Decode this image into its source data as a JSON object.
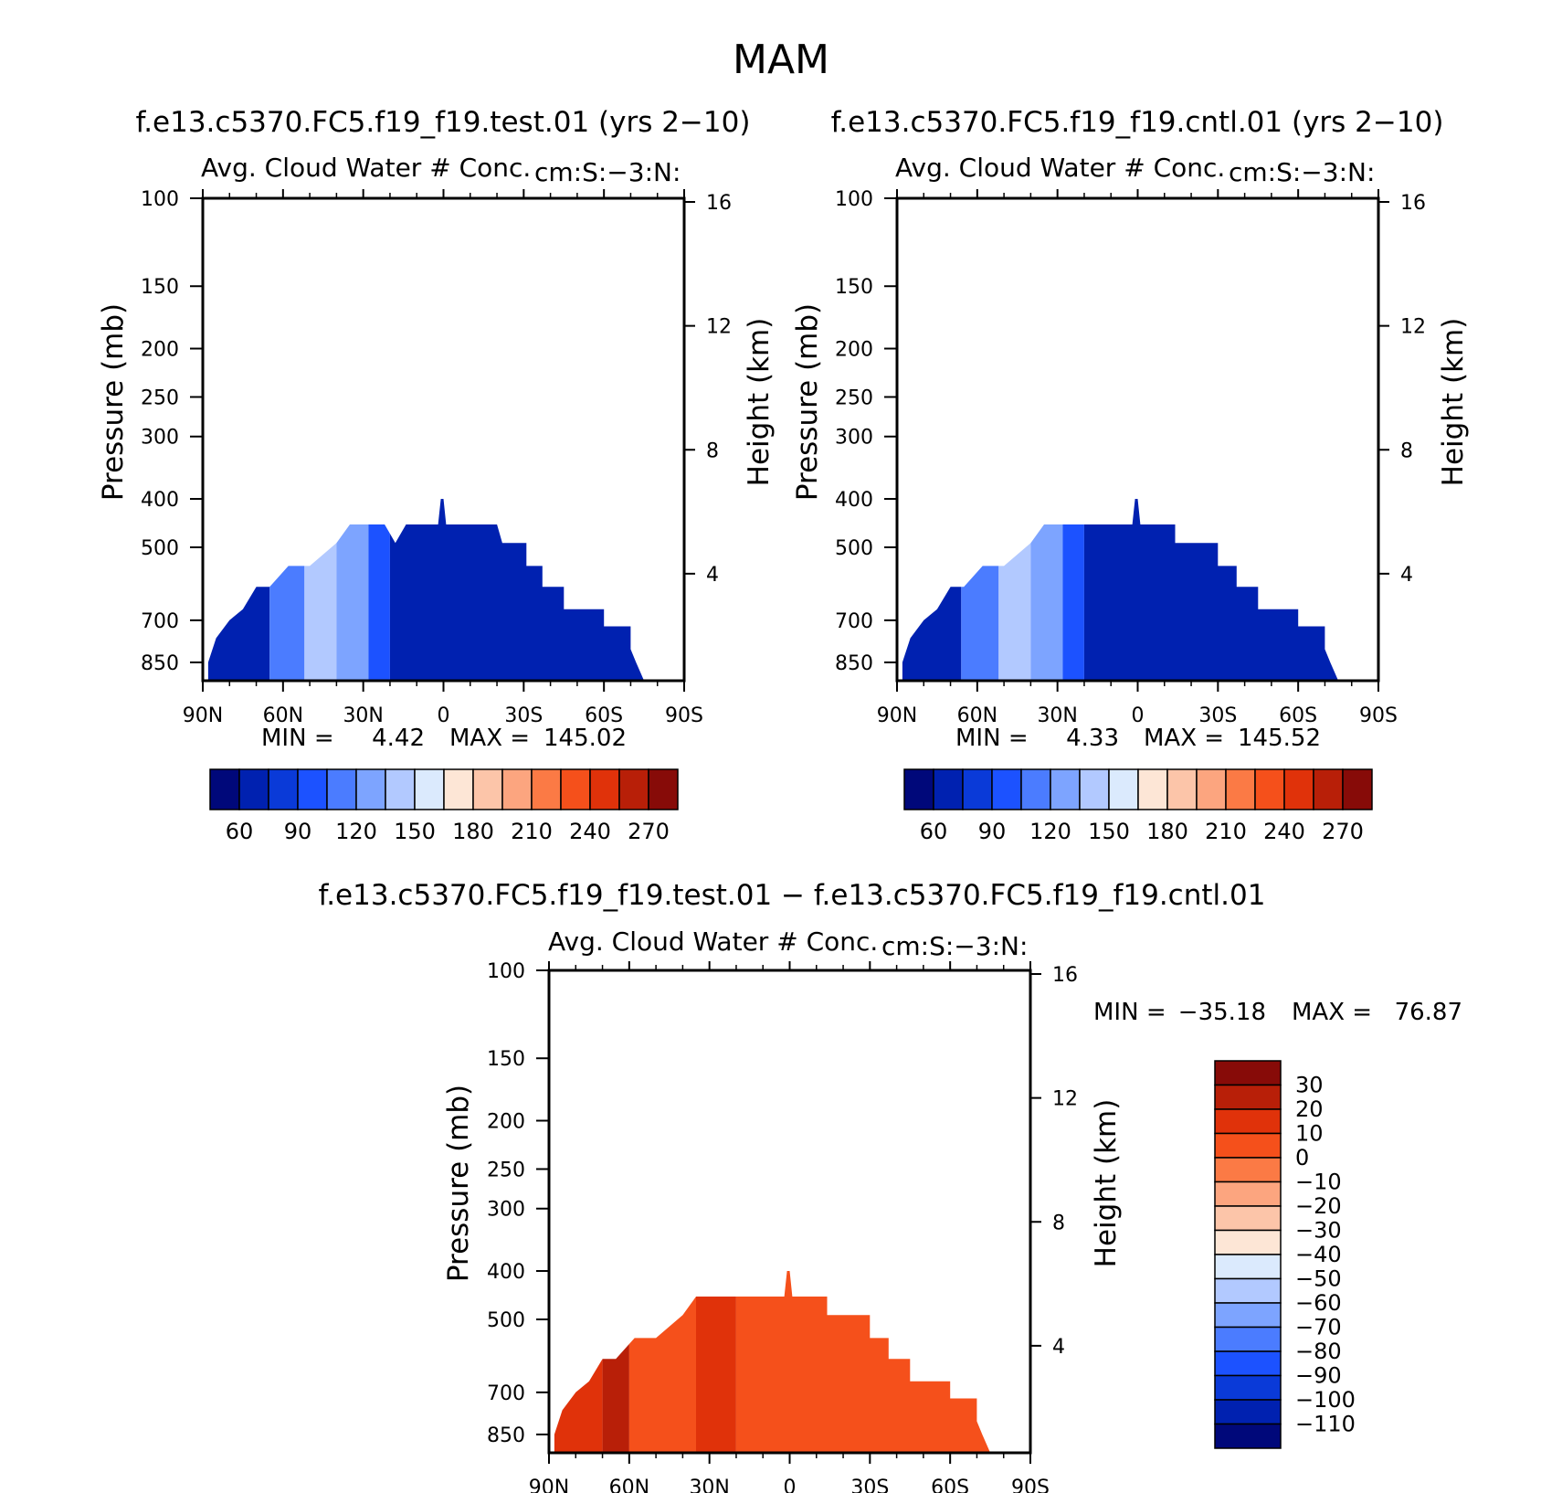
{
  "page": {
    "main_title": "MAM",
    "diff_title": "f.e13.c5370.FC5.f19_f19.test.01 − f.e13.c5370.FC5.f19_f19.cntl.01"
  },
  "colors": {
    "seq": [
      "#00087a",
      "#0021b0",
      "#0a3ad8",
      "#1c52ff",
      "#4b7cff",
      "#7da4ff",
      "#b2c9ff",
      "#dbeafd",
      "#fde6d6",
      "#fcc5a9",
      "#fca57f",
      "#fb7a45",
      "#f5501b",
      "#e0320a",
      "#b81f08",
      "#870b08"
    ],
    "diff": [
      "#00087a",
      "#0021b0",
      "#0a3ad8",
      "#1c52ff",
      "#4b7cff",
      "#7da4ff",
      "#b2c9ff",
      "#dbeafd",
      "#fde6d6",
      "#fcc5a9",
      "#fca57f",
      "#fb7a45",
      "#f5501b",
      "#e0320a",
      "#b81f08",
      "#870b08"
    ]
  },
  "chart_data": [
    {
      "type": "heatmap",
      "id": "test",
      "case_title": "f.e13.c5370.FC5.f19_f19.test.01 (yrs 2−10)",
      "title": "Avg. Cloud Water # Conc.",
      "units": "cm:S:−3:N:",
      "xlabel": "",
      "ylabel": "Pressure (mb)",
      "y2label": "Height (km)",
      "x_ticks": [
        "90N",
        "60N",
        "30N",
        "0",
        "30S",
        "60S",
        "90S"
      ],
      "x_range": [
        90,
        -90
      ],
      "y_ticks": [
        100,
        150,
        200,
        250,
        300,
        400,
        500,
        700,
        850
      ],
      "y_range": [
        100,
        925
      ],
      "y2_ticks": [
        16,
        12,
        8,
        4
      ],
      "min_label": "MIN =",
      "min_value": "4.42",
      "max_label": "MAX =",
      "max_value": "145.02",
      "colorbar_levels": [
        45,
        60,
        75,
        90,
        105,
        120,
        135,
        150,
        165,
        180,
        195,
        210,
        225,
        240,
        255,
        270
      ],
      "colorbar_labels": [
        "60",
        "90",
        "120",
        "150",
        "180",
        "210",
        "240",
        "270"
      ],
      "cloud_top_profile": [
        [
          88,
          850
        ],
        [
          85,
          760
        ],
        [
          80,
          700
        ],
        [
          75,
          665
        ],
        [
          70,
          600
        ],
        [
          65,
          600
        ],
        [
          58,
          545
        ],
        [
          50,
          545
        ],
        [
          40,
          490
        ],
        [
          35,
          450
        ],
        [
          22,
          450
        ],
        [
          18,
          490
        ],
        [
          14,
          450
        ],
        [
          2,
          450
        ],
        [
          1,
          400
        ],
        [
          0,
          400
        ],
        [
          -1,
          450
        ],
        [
          -20,
          450
        ],
        [
          -22,
          490
        ],
        [
          -31,
          490
        ],
        [
          -31,
          545
        ],
        [
          -37,
          545
        ],
        [
          -37,
          600
        ],
        [
          -45,
          600
        ],
        [
          -45,
          665
        ],
        [
          -60,
          665
        ],
        [
          -60,
          720
        ],
        [
          -70,
          720
        ],
        [
          -70,
          800
        ],
        [
          -72,
          850
        ],
        [
          -75,
          925
        ]
      ],
      "value_bands": [
        {
          "lat_from": 90,
          "lat_to": 65,
          "value": 52
        },
        {
          "lat_from": 65,
          "lat_to": 52,
          "value": 95
        },
        {
          "lat_from": 52,
          "lat_to": 40,
          "value": 125
        },
        {
          "lat_from": 40,
          "lat_to": 28,
          "value": 110
        },
        {
          "lat_from": 28,
          "lat_to": 20,
          "value": 80
        },
        {
          "lat_from": 20,
          "lat_to": -75,
          "value": 48
        }
      ]
    },
    {
      "type": "heatmap",
      "id": "cntl",
      "case_title": "f.e13.c5370.FC5.f19_f19.cntl.01 (yrs 2−10)",
      "title": "Avg. Cloud Water # Conc.",
      "units": "cm:S:−3:N:",
      "xlabel": "",
      "ylabel": "Pressure (mb)",
      "y2label": "Height (km)",
      "x_ticks": [
        "90N",
        "60N",
        "30N",
        "0",
        "30S",
        "60S",
        "90S"
      ],
      "x_range": [
        90,
        -90
      ],
      "y_ticks": [
        100,
        150,
        200,
        250,
        300,
        400,
        500,
        700,
        850
      ],
      "y_range": [
        100,
        925
      ],
      "y2_ticks": [
        16,
        12,
        8,
        4
      ],
      "min_label": "MIN =",
      "min_value": "4.33",
      "max_label": "MAX =",
      "max_value": "145.52",
      "colorbar_levels": [
        45,
        60,
        75,
        90,
        105,
        120,
        135,
        150,
        165,
        180,
        195,
        210,
        225,
        240,
        255,
        270
      ],
      "colorbar_labels": [
        "60",
        "90",
        "120",
        "150",
        "180",
        "210",
        "240",
        "270"
      ],
      "cloud_top_profile": [
        [
          88,
          850
        ],
        [
          85,
          760
        ],
        [
          80,
          700
        ],
        [
          75,
          665
        ],
        [
          70,
          600
        ],
        [
          65,
          600
        ],
        [
          58,
          545
        ],
        [
          50,
          545
        ],
        [
          40,
          490
        ],
        [
          35,
          450
        ],
        [
          22,
          450
        ],
        [
          18,
          450
        ],
        [
          2,
          450
        ],
        [
          1,
          400
        ],
        [
          0,
          400
        ],
        [
          -1,
          450
        ],
        [
          -14,
          450
        ],
        [
          -14,
          490
        ],
        [
          -30,
          490
        ],
        [
          -30,
          545
        ],
        [
          -37,
          545
        ],
        [
          -37,
          600
        ],
        [
          -45,
          600
        ],
        [
          -45,
          665
        ],
        [
          -60,
          665
        ],
        [
          -60,
          720
        ],
        [
          -70,
          720
        ],
        [
          -70,
          800
        ],
        [
          -72,
          850
        ],
        [
          -75,
          925
        ]
      ],
      "value_bands": [
        {
          "lat_from": 90,
          "lat_to": 66,
          "value": 52
        },
        {
          "lat_from": 66,
          "lat_to": 52,
          "value": 100
        },
        {
          "lat_from": 52,
          "lat_to": 40,
          "value": 128
        },
        {
          "lat_from": 40,
          "lat_to": 28,
          "value": 112
        },
        {
          "lat_from": 28,
          "lat_to": 20,
          "value": 80
        },
        {
          "lat_from": 20,
          "lat_to": -75,
          "value": 48
        }
      ]
    },
    {
      "type": "heatmap",
      "id": "diff",
      "title": "Avg. Cloud Water # Conc.",
      "units": "cm:S:−3:N:",
      "xlabel": "",
      "ylabel": "Pressure (mb)",
      "y2label": "Height (km)",
      "x_ticks": [
        "90N",
        "60N",
        "30N",
        "0",
        "30S",
        "60S",
        "90S"
      ],
      "x_range": [
        90,
        -90
      ],
      "y_ticks": [
        100,
        150,
        200,
        250,
        300,
        400,
        500,
        700,
        850
      ],
      "y_range": [
        100,
        925
      ],
      "y2_ticks": [
        16,
        12,
        8,
        4
      ],
      "min_label": "MIN =",
      "min_value": "−35.18",
      "max_label": "MAX =",
      "max_value": "76.87",
      "colorbar_levels": [
        -120,
        -110,
        -100,
        -90,
        -80,
        -70,
        -60,
        -50,
        -40,
        -30,
        -20,
        -10,
        0,
        10,
        20,
        30
      ],
      "colorbar_labels": [
        "30",
        "20",
        "10",
        "0",
        "−10",
        "−20",
        "−30",
        "−40",
        "−50",
        "−60",
        "−70",
        "−80",
        "−90",
        "−100",
        "−110"
      ],
      "cloud_top_profile": [
        [
          88,
          850
        ],
        [
          85,
          760
        ],
        [
          80,
          700
        ],
        [
          75,
          665
        ],
        [
          70,
          600
        ],
        [
          65,
          600
        ],
        [
          58,
          545
        ],
        [
          50,
          545
        ],
        [
          40,
          490
        ],
        [
          35,
          450
        ],
        [
          22,
          450
        ],
        [
          18,
          450
        ],
        [
          2,
          450
        ],
        [
          1,
          400
        ],
        [
          0,
          400
        ],
        [
          -1,
          450
        ],
        [
          -14,
          450
        ],
        [
          -14,
          490
        ],
        [
          -30,
          490
        ],
        [
          -30,
          545
        ],
        [
          -37,
          545
        ],
        [
          -37,
          600
        ],
        [
          -45,
          600
        ],
        [
          -45,
          665
        ],
        [
          -60,
          665
        ],
        [
          -60,
          720
        ],
        [
          -70,
          720
        ],
        [
          -70,
          800
        ],
        [
          -72,
          850
        ],
        [
          -75,
          925
        ]
      ],
      "value_bands": [
        {
          "lat_from": 90,
          "lat_to": 70,
          "value": 5
        },
        {
          "lat_from": 70,
          "lat_to": 60,
          "value": 12
        },
        {
          "lat_from": 60,
          "lat_to": 35,
          "value": -5
        },
        {
          "lat_from": 35,
          "lat_to": 20,
          "value": 8
        },
        {
          "lat_from": 20,
          "lat_to": -75,
          "value": -5
        }
      ]
    }
  ]
}
